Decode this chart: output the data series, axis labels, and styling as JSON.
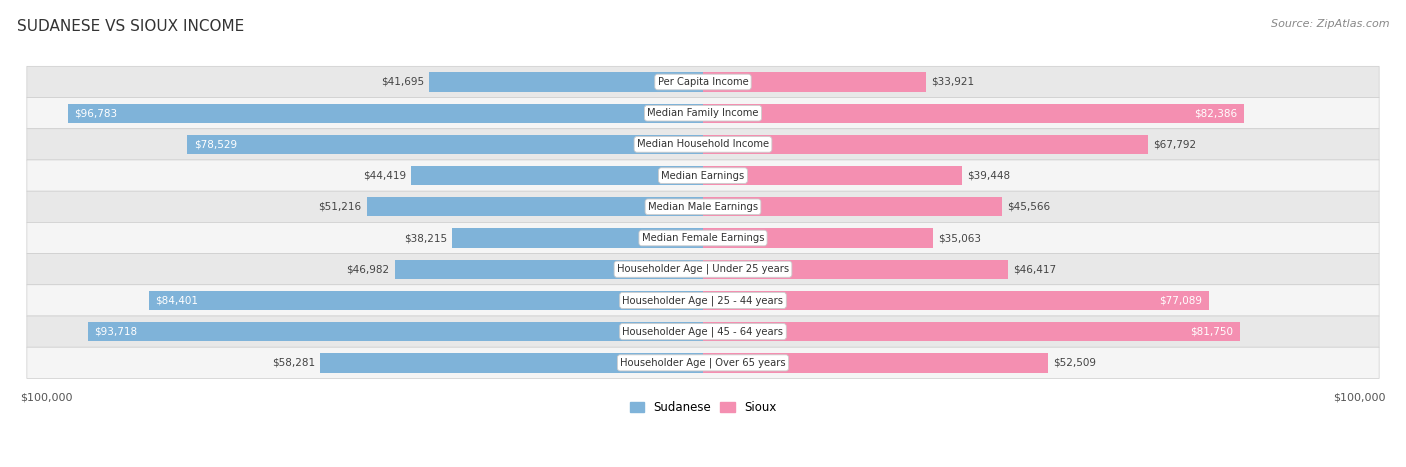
{
  "title": "SUDANESE VS SIOUX INCOME",
  "source": "Source: ZipAtlas.com",
  "max_value": 100000,
  "categories": [
    "Per Capita Income",
    "Median Family Income",
    "Median Household Income",
    "Median Earnings",
    "Median Male Earnings",
    "Median Female Earnings",
    "Householder Age | Under 25 years",
    "Householder Age | 25 - 44 years",
    "Householder Age | 45 - 64 years",
    "Householder Age | Over 65 years"
  ],
  "sudanese_values": [
    41695,
    96783,
    78529,
    44419,
    51216,
    38215,
    46982,
    84401,
    93718,
    58281
  ],
  "sioux_values": [
    33921,
    82386,
    67792,
    39448,
    45566,
    35063,
    46417,
    77089,
    81750,
    52509
  ],
  "sudanese_color": "#7fb3d9",
  "sioux_color": "#f48fb1",
  "sudanese_label_color_dark": "#444444",
  "sioux_label_color_dark": "#444444",
  "sudanese_label_color_white": "#ffffff",
  "sioux_label_color_white": "#ffffff",
  "full_bar_threshold": 72000,
  "background_color": "#ffffff",
  "row_bg_odd": "#e8e8e8",
  "row_bg_even": "#f5f5f5",
  "label_box_facecolor": "#ffffff",
  "label_box_edgecolor": "#cccccc",
  "bar_height": 0.62,
  "row_padding": 0.19
}
